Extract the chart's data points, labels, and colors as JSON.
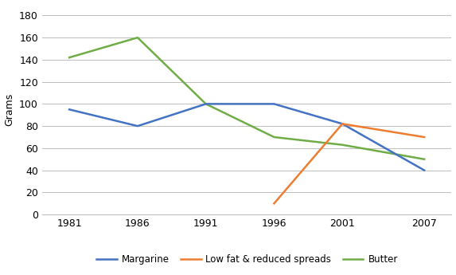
{
  "years": [
    1981,
    1986,
    1991,
    1996,
    2001,
    2007
  ],
  "margarine": [
    95,
    80,
    100,
    100,
    82,
    40
  ],
  "low_fat": [
    null,
    null,
    null,
    10,
    82,
    70
  ],
  "butter": [
    142,
    160,
    100,
    70,
    63,
    50
  ],
  "ylabel": "Grams",
  "ylim": [
    0,
    190
  ],
  "yticks": [
    0,
    20,
    40,
    60,
    80,
    100,
    120,
    140,
    160,
    180
  ],
  "xlim_left": 1979,
  "xlim_right": 2009,
  "margarine_color": "#4472C4",
  "low_fat_color": "#ED7D31",
  "butter_color": "#70AD47",
  "legend_labels": [
    "Margarine",
    "Low fat & reduced spreads",
    "Butter"
  ],
  "background_color": "#FFFFFF",
  "grid_color": "#BFBFBF",
  "line_width": 1.8,
  "tick_fontsize": 9,
  "ylabel_fontsize": 9,
  "legend_fontsize": 8.5
}
